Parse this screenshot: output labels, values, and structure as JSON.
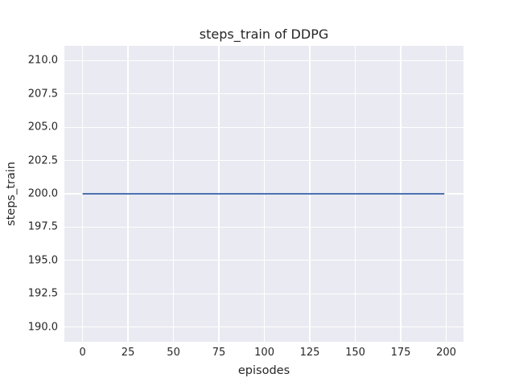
{
  "chart_data": {
    "type": "line",
    "title": "steps_train of DDPG",
    "xlabel": "episodes",
    "ylabel": "steps_train",
    "xlim": [
      -10.0,
      209.5
    ],
    "ylim": [
      188.9,
      211.1
    ],
    "xticks": [
      0,
      25,
      50,
      75,
      100,
      125,
      150,
      175,
      200
    ],
    "xtick_labels": [
      "0",
      "25",
      "50",
      "75",
      "100",
      "125",
      "150",
      "175",
      "200"
    ],
    "yticks": [
      190.0,
      192.5,
      195.0,
      197.5,
      200.0,
      202.5,
      205.0,
      207.5,
      210.0
    ],
    "ytick_labels": [
      "190.0",
      "192.5",
      "195.0",
      "197.5",
      "200.0",
      "202.5",
      "205.0",
      "207.5",
      "210.0"
    ],
    "grid": true,
    "legend": false,
    "series": [
      {
        "name": "steps_train",
        "x": [
          0,
          199
        ],
        "y": [
          200.0,
          200.0
        ]
      }
    ],
    "colors": {
      "plot_background": "#eaeaf2",
      "gridline": "#ffffff",
      "text": "#262626",
      "line": "#4c72b0",
      "figure_background": "#ffffff"
    },
    "line_width": 2
  }
}
